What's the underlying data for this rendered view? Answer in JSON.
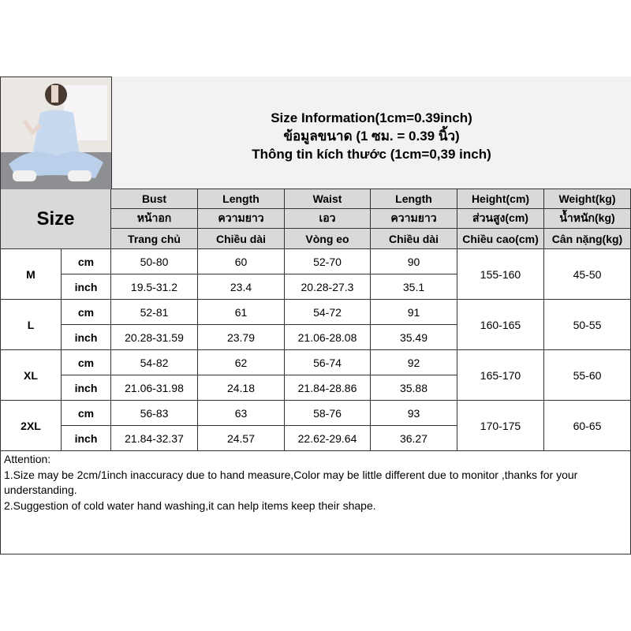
{
  "title": {
    "line1": "Size Information(1cm=0.39inch)",
    "line2": "ข้อมูลขนาด (1 ซม. = 0.39 นิ้ว)",
    "line3": "Thông tin kích thước (1cm=0,39 inch)"
  },
  "size_label": "Size",
  "headers": [
    [
      "Bust",
      "หน้าอก",
      "Trang chủ"
    ],
    [
      "Length",
      "ความยาว",
      "Chiều dài"
    ],
    [
      "Waist",
      "เอว",
      "Vòng eo"
    ],
    [
      "Length",
      "ความยาว",
      "Chiều dài"
    ],
    [
      "Height(cm)",
      "ส่วนสูง(cm)",
      "Chiều cao(cm)"
    ],
    [
      "Weight(kg)",
      "น้ำหนัก(kg)",
      "Cân nặng(kg)"
    ]
  ],
  "units": [
    "cm",
    "inch"
  ],
  "rows": [
    {
      "size": "M",
      "cm": [
        "50-80",
        "60",
        "52-70",
        "90"
      ],
      "inch": [
        "19.5-31.2",
        "23.4",
        "20.28-27.3",
        "35.1"
      ],
      "height": "155-160",
      "weight": "45-50"
    },
    {
      "size": "L",
      "cm": [
        "52-81",
        "61",
        "54-72",
        "91"
      ],
      "inch": [
        "20.28-31.59",
        "23.79",
        "21.06-28.08",
        "35.49"
      ],
      "height": "160-165",
      "weight": "50-55"
    },
    {
      "size": "XL",
      "cm": [
        "54-82",
        "62",
        "56-74",
        "92"
      ],
      "inch": [
        "21.06-31.98",
        "24.18",
        "21.84-28.86",
        "35.88"
      ],
      "height": "165-170",
      "weight": "55-60"
    },
    {
      "size": "2XL",
      "cm": [
        "56-83",
        "63",
        "58-76",
        "93"
      ],
      "inch": [
        "21.84-32.37",
        "24.57",
        "22.62-29.64",
        "36.27"
      ],
      "height": "170-175",
      "weight": "60-65"
    }
  ],
  "attention": {
    "title": "Attention:",
    "line1": "1.Size may be 2cm/1inch inaccuracy due to hand measure,Color may be little different due to monitor ,thanks for your understanding.",
    "line2": "2.Suggestion of cold water hand washing,it can help items keep their shape."
  }
}
